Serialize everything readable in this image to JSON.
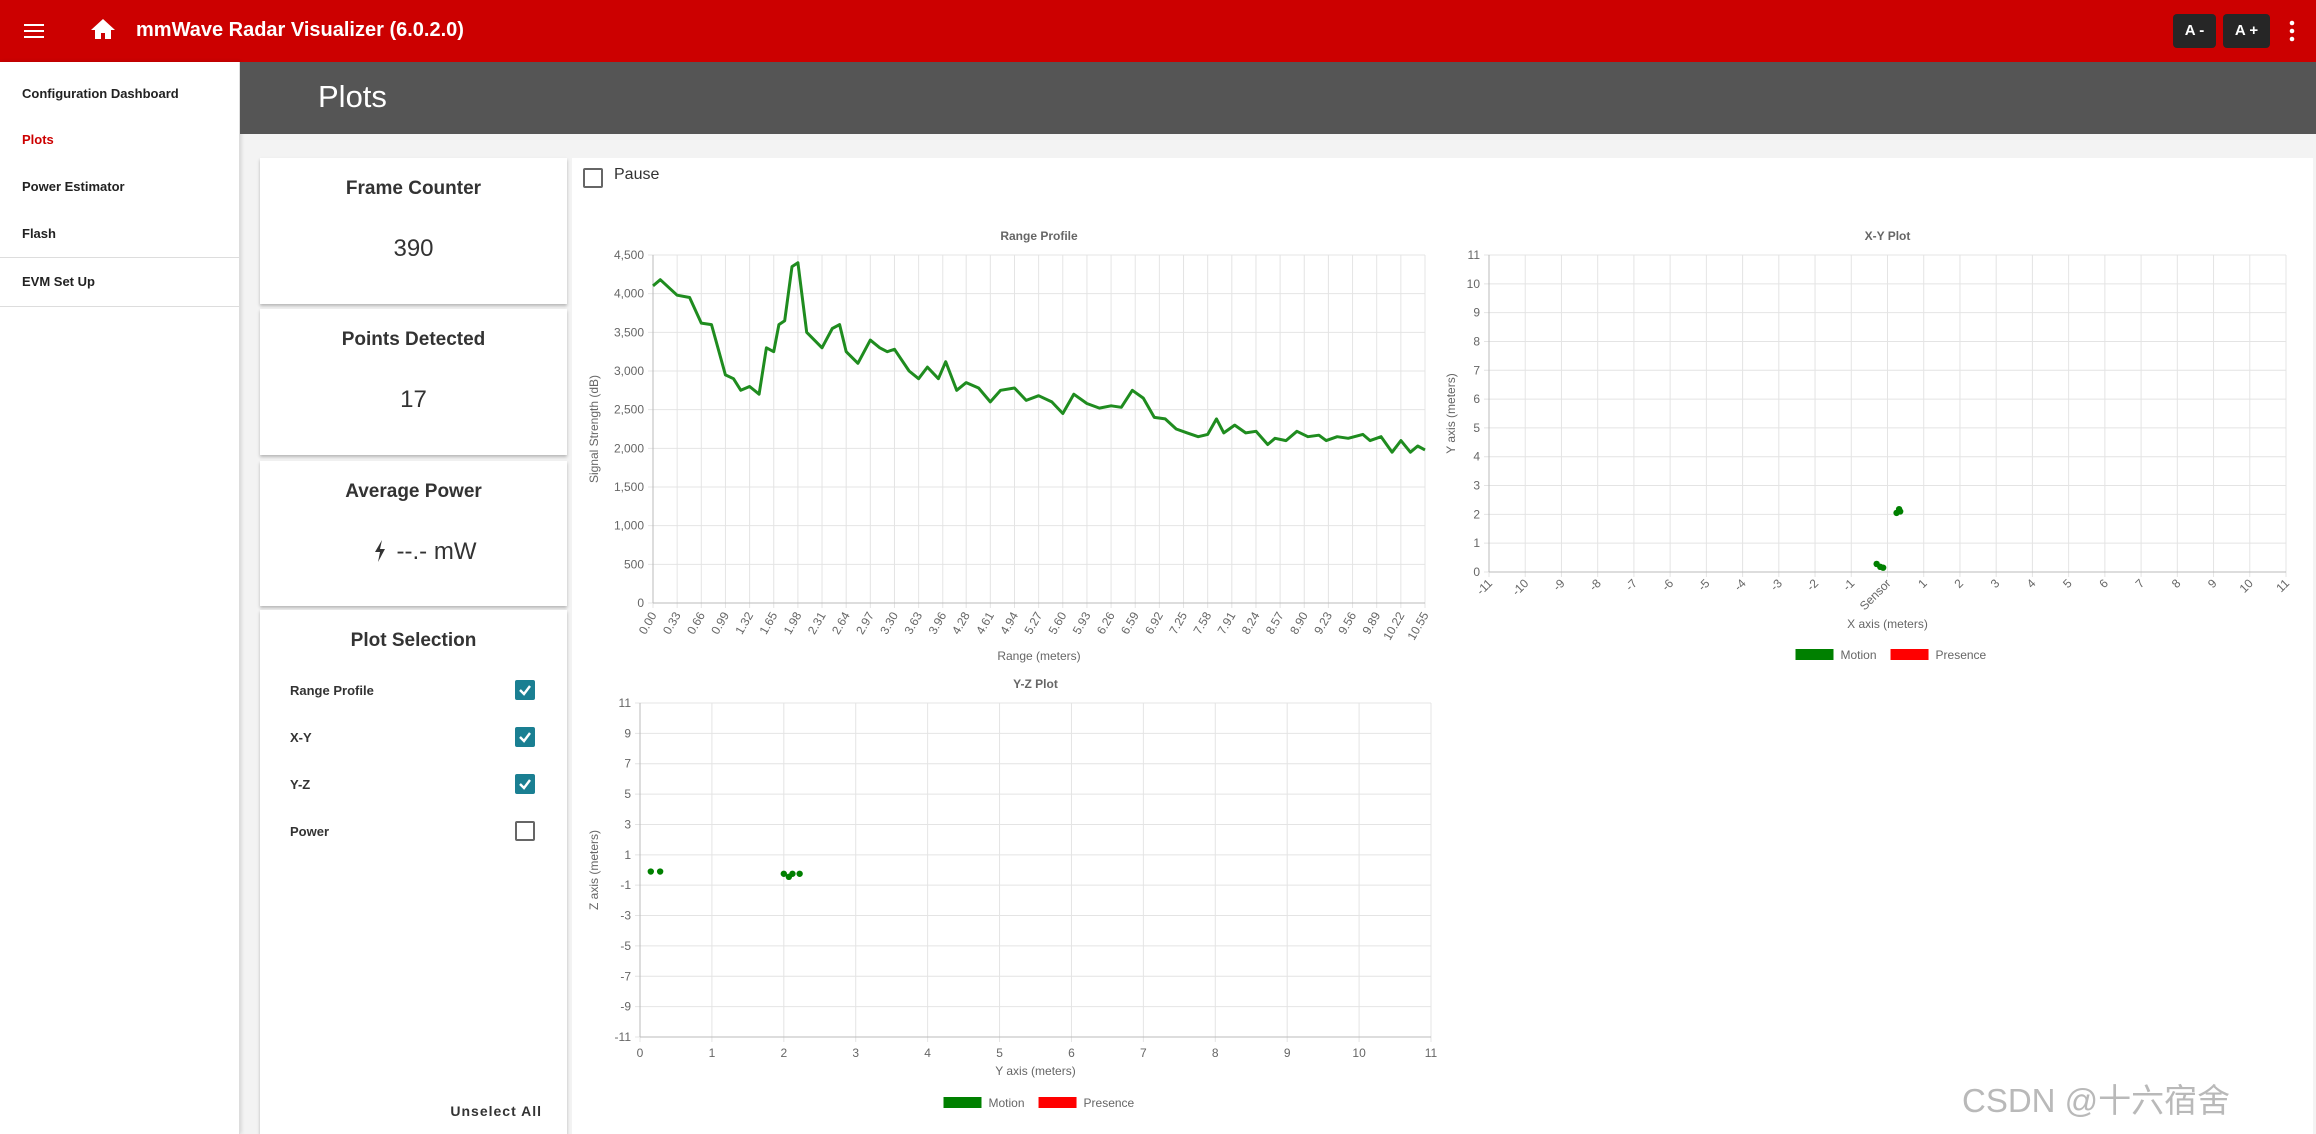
{
  "header": {
    "title": "mmWave Radar Visualizer (6.0.2.0)",
    "font_buttons": [
      "A -",
      "A +"
    ]
  },
  "nav": {
    "items": [
      "Configuration Dashboard",
      "Plots",
      "Power Estimator",
      "Flash",
      "EVM Set Up"
    ],
    "active": 1
  },
  "page_title": "Plots",
  "stats": [
    {
      "label": "Frame Counter",
      "value": 390
    },
    {
      "label": "Points Detected",
      "value": 17
    },
    {
      "label": "Average Power",
      "value": "--.- mW"
    }
  ],
  "plot_selection": {
    "title": "Plot Selection",
    "options": [
      {
        "label": "Range Profile",
        "checked": true
      },
      {
        "label": "X-Y",
        "checked": true
      },
      {
        "label": "Y-Z",
        "checked": true
      },
      {
        "label": "Power",
        "checked": false
      }
    ],
    "unselect_all": "Unselect All"
  },
  "pause": {
    "label": "Pause",
    "checked": false
  },
  "watermark": "CSDN @十六宿舍",
  "chart_data": [
    {
      "type": "line",
      "title": "Range Profile",
      "x_label": "Range (meters)",
      "y_label": "Signal Strength (dB)",
      "color": "#1f8c1f",
      "grid": true,
      "x": [
        0,
        0.1,
        0.33,
        0.5,
        0.66,
        0.8,
        0.99,
        1.1,
        1.2,
        1.32,
        1.45,
        1.55,
        1.65,
        1.72,
        1.8,
        1.9,
        1.98,
        2.1,
        2.31,
        2.45,
        2.55,
        2.64,
        2.8,
        2.97,
        3.1,
        3.2,
        3.3,
        3.5,
        3.63,
        3.75,
        3.9,
        4.0,
        4.15,
        4.28,
        4.45,
        4.61,
        4.75,
        4.94,
        5.1,
        5.27,
        5.45,
        5.6,
        5.75,
        5.93,
        6.1,
        6.26,
        6.4,
        6.55,
        6.7,
        6.85,
        7.0,
        7.15,
        7.3,
        7.45,
        7.58,
        7.7,
        7.8,
        7.95,
        8.1,
        8.24,
        8.4,
        8.5,
        8.65,
        8.8,
        8.95,
        9.1,
        9.2,
        9.35,
        9.5,
        9.7,
        9.8,
        9.95,
        10.1,
        10.22,
        10.35,
        10.45,
        10.55
      ],
      "values": [
        4100,
        4180,
        3980,
        3950,
        3620,
        3600,
        2950,
        2900,
        2750,
        2800,
        2700,
        3300,
        3250,
        3600,
        3650,
        4350,
        4400,
        3500,
        3300,
        3550,
        3600,
        3250,
        3100,
        3400,
        3300,
        3250,
        3280,
        3000,
        2900,
        3050,
        2900,
        3120,
        2750,
        2850,
        2780,
        2600,
        2750,
        2780,
        2620,
        2680,
        2600,
        2450,
        2700,
        2580,
        2520,
        2550,
        2530,
        2750,
        2650,
        2400,
        2380,
        2250,
        2200,
        2150,
        2180,
        2380,
        2200,
        2300,
        2200,
        2220,
        2050,
        2130,
        2100,
        2220,
        2150,
        2170,
        2100,
        2150,
        2130,
        2180,
        2100,
        2150,
        1950,
        2100,
        1950,
        2030,
        1980
      ],
      "xlim": [
        0,
        10.55
      ],
      "xticks": [
        {
          "value": 0,
          "label": "0.00"
        },
        0.33,
        0.66,
        0.99,
        1.32,
        1.65,
        1.98,
        2.31,
        2.64,
        2.97,
        {
          "value": 3.3,
          "label": "3.30"
        },
        3.63,
        3.96,
        4.28,
        4.61,
        4.94,
        5.27,
        {
          "value": 5.6,
          "label": "5.60"
        },
        5.93,
        6.26,
        6.59,
        6.92,
        7.25,
        7.58,
        7.91,
        8.24,
        8.57,
        {
          "value": 8.9,
          "label": "8.90"
        },
        9.23,
        9.56,
        9.89,
        10.22,
        10.55
      ],
      "ylim": [
        0,
        4500
      ],
      "yticks": [
        0,
        500,
        {
          "value": 1000,
          "label": "1,000"
        },
        {
          "value": 1500,
          "label": "1,500"
        },
        {
          "value": 2000,
          "label": "2,000"
        },
        {
          "value": 2500,
          "label": "2,500"
        },
        {
          "value": 3000,
          "label": "3,000"
        },
        {
          "value": 3500,
          "label": "3,500"
        },
        {
          "value": 4000,
          "label": "4,000"
        },
        {
          "value": 4500,
          "label": "4,500"
        }
      ]
    },
    {
      "type": "scatter",
      "title": "X-Y Plot",
      "x_label": "X axis (meters)",
      "y_label": "Y axis (meters)",
      "grid": true,
      "legend": "bottom",
      "series": [
        {
          "name": "Motion",
          "color": "#008000",
          "x": [
            0.25,
            0.32,
            0.35,
            -0.3,
            -0.2,
            -0.12
          ],
          "values": [
            2.05,
            2.18,
            2.1,
            0.28,
            0.18,
            0.15
          ]
        },
        {
          "name": "Presence",
          "color": "#ff0000",
          "x": [],
          "values": []
        }
      ],
      "xlim": [
        -11,
        11
      ],
      "xticks": [
        -11,
        -10,
        -9,
        -8,
        -7,
        -6,
        -5,
        -4,
        -3,
        -2,
        -1,
        {
          "value": 0,
          "label": "Sensor"
        },
        1,
        2,
        3,
        4,
        5,
        6,
        7,
        8,
        9,
        10,
        11
      ],
      "ylim": [
        0,
        11
      ],
      "yticks": [
        0,
        1,
        2,
        3,
        4,
        5,
        6,
        7,
        8,
        9,
        10,
        11
      ]
    },
    {
      "type": "scatter",
      "title": "Y-Z Plot",
      "x_label": "Y axis (meters)",
      "y_label": "Z axis (meters)",
      "grid": true,
      "legend": "bottom",
      "series": [
        {
          "name": "Motion",
          "color": "#008000",
          "x": [
            0.15,
            0.28,
            2.0,
            2.07,
            2.12,
            2.22
          ],
          "values": [
            -0.1,
            -0.1,
            -0.25,
            -0.45,
            -0.25,
            -0.25
          ]
        },
        {
          "name": "Presence",
          "color": "#ff0000",
          "x": [],
          "values": []
        }
      ],
      "xlim": [
        0,
        11
      ],
      "xticks": [
        0,
        1,
        2,
        3,
        4,
        5,
        6,
        7,
        8,
        9,
        10,
        11
      ],
      "ylim": [
        -11,
        11
      ],
      "yticks": [
        -11,
        -9,
        -7,
        -5,
        -3,
        -1,
        1,
        3,
        5,
        7,
        9,
        11
      ]
    }
  ]
}
